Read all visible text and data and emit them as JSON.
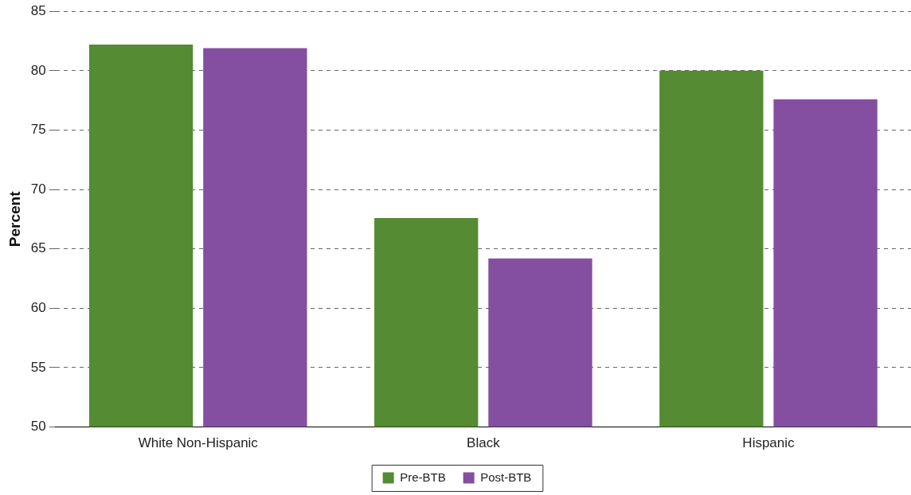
{
  "chart_data": {
    "type": "bar",
    "ylabel": "Percent",
    "categories": [
      "White Non-Hispanic",
      "Black",
      "Hispanic"
    ],
    "series": [
      {
        "name": "Pre-BTB",
        "color": "#548b33",
        "values": [
          82.2,
          67.6,
          80.0
        ]
      },
      {
        "name": "Post-BTB",
        "color": "#844fa0",
        "values": [
          81.9,
          64.2,
          77.6
        ]
      }
    ],
    "ylim": [
      50,
      85
    ],
    "yticks": [
      50,
      55,
      60,
      65,
      70,
      75,
      80,
      85
    ],
    "grid": "y",
    "legend": "bottom"
  }
}
